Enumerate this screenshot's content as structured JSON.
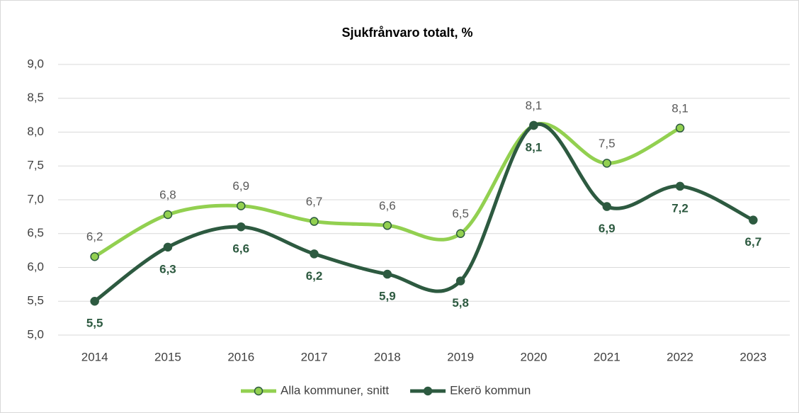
{
  "chart_data": {
    "type": "line",
    "title": "Sjukfrånvaro totalt, %",
    "categories": [
      "2014",
      "2015",
      "2016",
      "2017",
      "2018",
      "2019",
      "2020",
      "2021",
      "2022",
      "2023"
    ],
    "series": [
      {
        "name": "Alla kommuner, snitt",
        "color": "#92d050",
        "marker_stroke": "#2d5a40",
        "values": [
          6.16,
          6.78,
          6.91,
          6.68,
          6.62,
          6.5,
          8.1,
          7.54,
          8.06,
          null
        ],
        "value_labels": [
          "6,2",
          "6,8",
          "6,9",
          "6,7",
          "6,6",
          "6,5",
          "8,1",
          "7,5",
          "8,1",
          null
        ]
      },
      {
        "name": "Ekerö kommun",
        "color": "#2d5a40",
        "marker_stroke": "#2d5a40",
        "values": [
          5.5,
          6.3,
          6.6,
          6.2,
          5.9,
          5.8,
          8.1,
          6.9,
          7.2,
          6.7
        ],
        "value_labels": [
          "5,5",
          "6,3",
          "6,6",
          "6,2",
          "5,9",
          "5,8",
          "8,1",
          "6,9",
          "7,2",
          "6,7"
        ]
      }
    ],
    "ylim": [
      5,
      9
    ],
    "yticks": [
      {
        "value": 5,
        "label": "5,0"
      },
      {
        "value": 5.5,
        "label": "5,5"
      },
      {
        "value": 6,
        "label": "6,0"
      },
      {
        "value": 6.5,
        "label": "6,5"
      },
      {
        "value": 7,
        "label": "7,0"
      },
      {
        "value": 7.5,
        "label": "7,5"
      },
      {
        "value": 8,
        "label": "8,0"
      },
      {
        "value": 8.5,
        "label": "8,5"
      },
      {
        "value": 9,
        "label": "9,0"
      }
    ],
    "grid": true,
    "smooth": true,
    "legend": "bottom"
  }
}
